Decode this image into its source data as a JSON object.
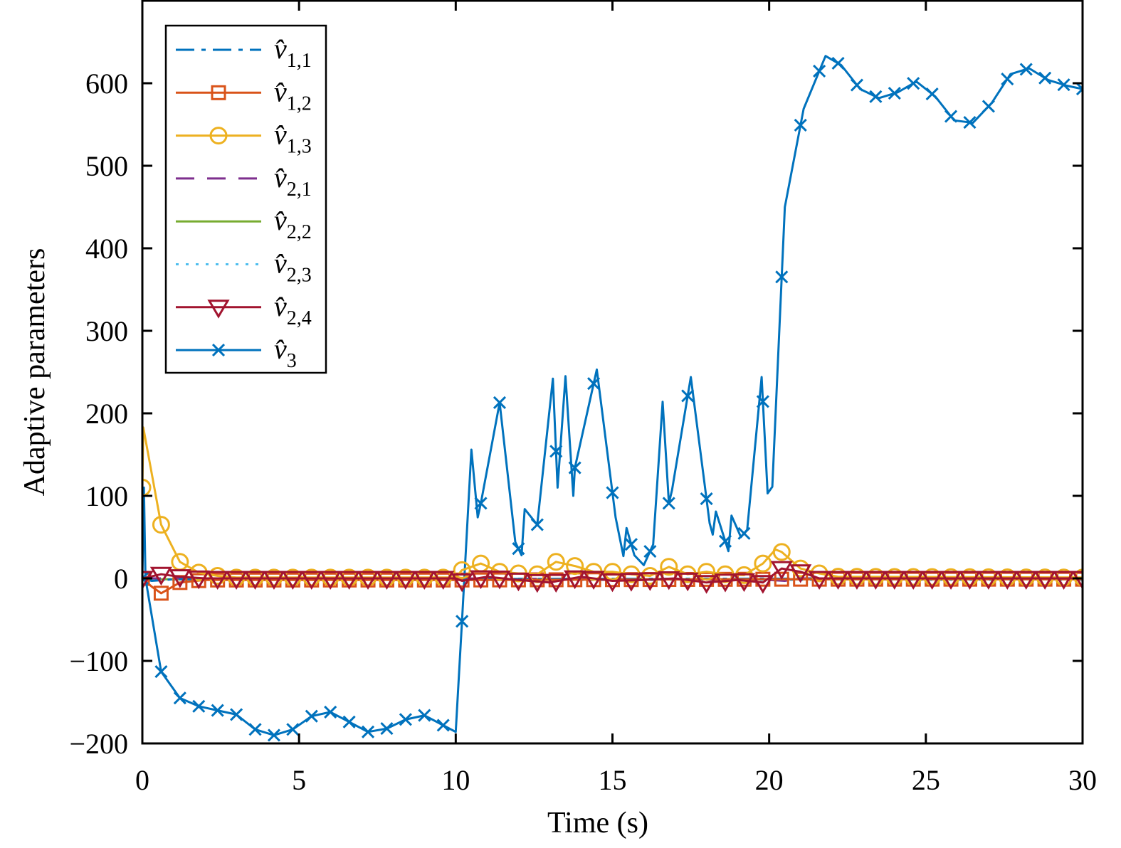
{
  "chart_data": {
    "type": "line",
    "title": "",
    "xlabel": "Time (s)",
    "ylabel": "Adaptive parameters",
    "xlim": [
      0,
      30
    ],
    "ylim": [
      -200,
      700
    ],
    "xticks": [
      0,
      5,
      10,
      15,
      20,
      25,
      30
    ],
    "yticks": [
      -200,
      -100,
      0,
      100,
      200,
      300,
      400,
      500,
      600
    ],
    "ytick_labels": [
      "−200",
      "−100",
      "0",
      "100",
      "200",
      "300",
      "400",
      "500",
      "600"
    ],
    "grid": false,
    "legend_position": "top-left",
    "marker_interval": 0.6,
    "series": [
      {
        "name": "v̂1,1",
        "color": "#0072BD",
        "line": "dashdot",
        "marker": "none",
        "t": [
          0,
          0.3,
          1,
          30
        ],
        "values": [
          0,
          -3,
          -1,
          0
        ]
      },
      {
        "name": "v̂1,2",
        "color": "#D95319",
        "line": "solid",
        "marker": "square",
        "t": [
          0,
          0.3,
          0.6,
          1.2,
          2,
          10,
          20,
          30
        ],
        "values": [
          0,
          -10,
          -18,
          -5,
          -2,
          -2,
          -1,
          -1
        ]
      },
      {
        "name": "v̂1,3",
        "color": "#EDB120",
        "line": "solid",
        "marker": "circle",
        "t": [
          0,
          0.03,
          0.6,
          1.2,
          1.8,
          2.4,
          3,
          10,
          10.2,
          10.8,
          11.4,
          12,
          12.6,
          13.2,
          13.8,
          14.4,
          15,
          15.6,
          16.2,
          16.8,
          17.4,
          18,
          18.6,
          19.2,
          19.8,
          20.2,
          20.4,
          21,
          21.6,
          22.2,
          30
        ],
        "values": [
          110,
          183,
          65,
          20,
          7,
          3,
          1,
          1,
          10,
          18,
          8,
          6,
          5,
          20,
          15,
          8,
          8,
          5,
          3,
          14,
          5,
          8,
          5,
          4,
          18,
          35,
          32,
          12,
          6,
          2,
          1
        ]
      },
      {
        "name": "v̂2,1",
        "color": "#7E2F8E",
        "line": "dashed",
        "marker": "none",
        "t": [
          0,
          10,
          20,
          20.5,
          21,
          30
        ],
        "values": [
          0,
          0,
          -2,
          -3,
          0,
          0
        ]
      },
      {
        "name": "v̂2,2",
        "color": "#77AC30",
        "line": "solid",
        "marker": "none",
        "t": [
          0,
          30
        ],
        "values": [
          -1,
          -1
        ]
      },
      {
        "name": "v̂2,3",
        "color": "#4DBEEE",
        "line": "dotted",
        "marker": "none",
        "t": [
          0,
          30
        ],
        "values": [
          -2,
          -2
        ]
      },
      {
        "name": "v̂2,4",
        "color": "#A2142F",
        "line": "solid",
        "marker": "triangle-down",
        "t": [
          0,
          0.6,
          1.2,
          2,
          10,
          10.2,
          11,
          12,
          13,
          14,
          15,
          16,
          17,
          18,
          19,
          19.8,
          20.4,
          21,
          21.6,
          30
        ],
        "values": [
          0,
          5,
          2,
          0,
          0,
          -3,
          2,
          -2,
          -5,
          2,
          -3,
          -2,
          0,
          -5,
          -2,
          -5,
          12,
          8,
          0,
          0
        ]
      },
      {
        "name": "v̂3",
        "color": "#0072BD",
        "line": "solid",
        "marker": "x",
        "t": [
          0,
          0.05,
          0.1,
          0.6,
          1.2,
          1.8,
          2.4,
          3.0,
          3.6,
          4.2,
          4.8,
          5.4,
          6.0,
          6.6,
          7.2,
          7.8,
          8.4,
          9.0,
          9.6,
          10.0,
          10.2,
          10.5,
          10.7,
          10.8,
          11.4,
          11.9,
          12.1,
          12.2,
          12.6,
          13.1,
          13.25,
          13.5,
          13.75,
          13.8,
          14.5,
          15.1,
          15.35,
          15.45,
          15.7,
          16.0,
          16.3,
          16.6,
          16.8,
          16.9,
          17.5,
          18.1,
          18.2,
          18.3,
          18.7,
          18.8,
          19.1,
          19.3,
          19.76,
          19.95,
          20.1,
          20.5,
          21.1,
          21.8,
          22.3,
          22.9,
          23.5,
          24.1,
          24.7,
          25.3,
          25.9,
          26.5,
          27.1,
          27.7,
          28.3,
          28.9,
          29.5,
          30
        ],
        "values": [
          0,
          110,
          0,
          -113,
          -145,
          -155,
          -160,
          -165,
          -183,
          -190,
          -183,
          -167,
          -162,
          -174,
          -186,
          -182,
          -171,
          -166,
          -178,
          -186,
          -52,
          156,
          74,
          91,
          213,
          44,
          28,
          84,
          65,
          242,
          110,
          245,
          100,
          134,
          253,
          74,
          27,
          61,
          28,
          16,
          41,
          214,
          91,
          107,
          244,
          67,
          53,
          81,
          33,
          76,
          50,
          59,
          244,
          103,
          111,
          450,
          569,
          633,
          622,
          593,
          582,
          589,
          602,
          584,
          555,
          552,
          576,
          611,
          618,
          604,
          597,
          593
        ]
      }
    ]
  }
}
